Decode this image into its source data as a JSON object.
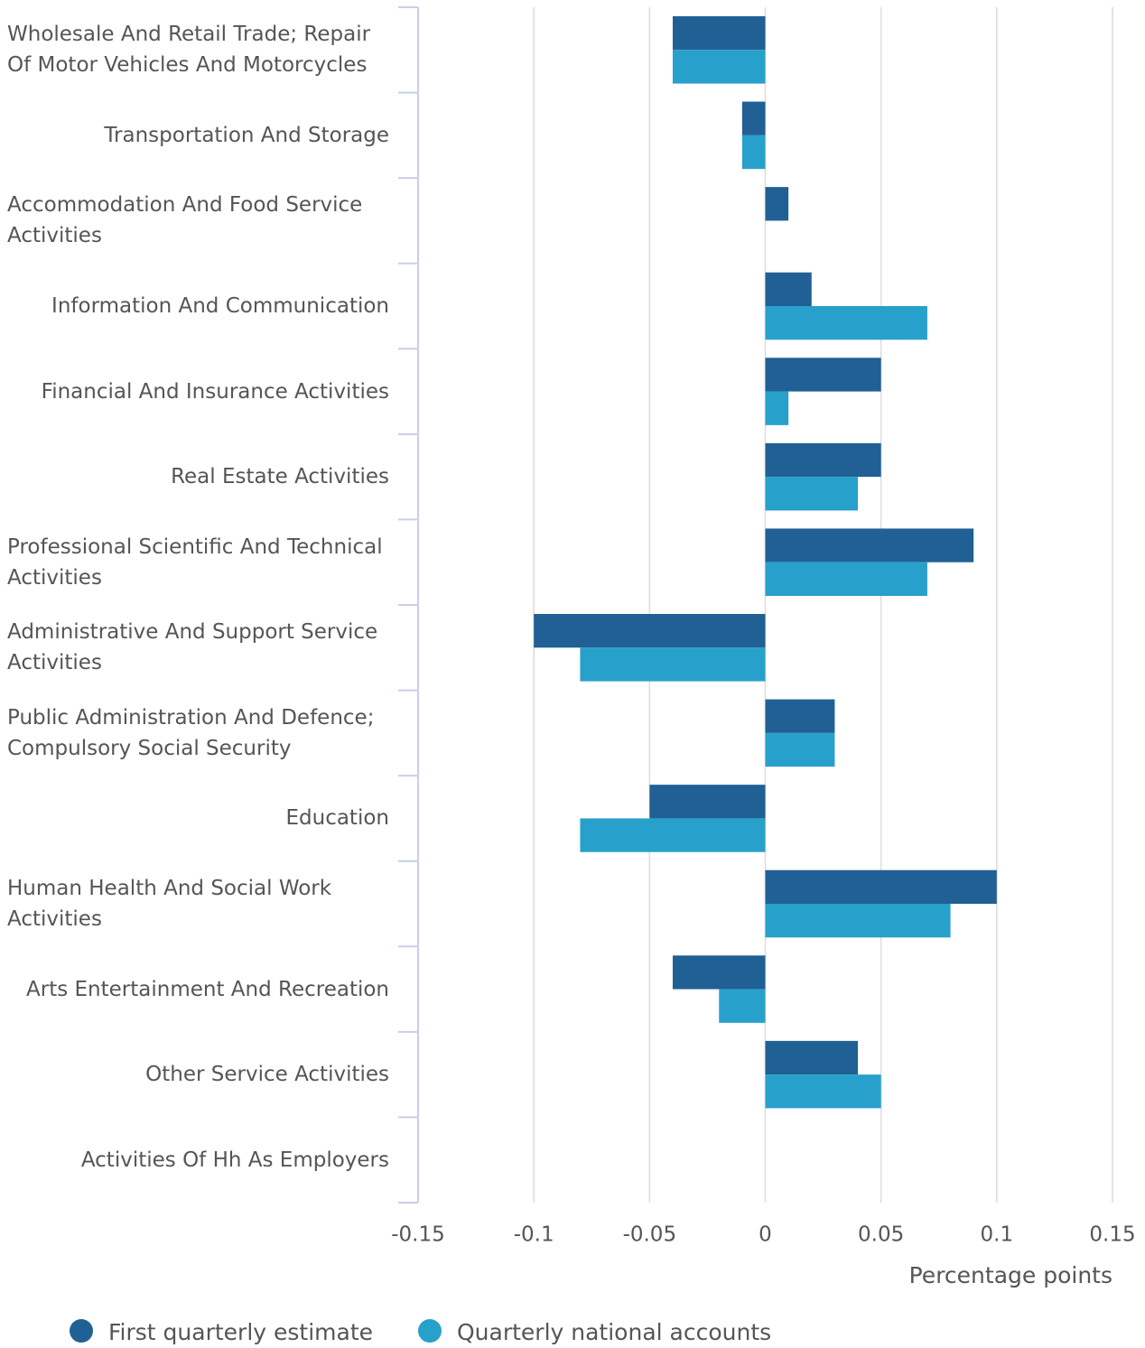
{
  "chart_data": {
    "type": "hbar",
    "categories": [
      "Wholesale And Retail Trade; Repair Of Motor Vehicles And Motorcycles",
      "Transportation And Storage",
      "Accommodation And Food Service Activities",
      "Information And Communication",
      "Financial And Insurance Activities",
      "Real Estate Activities",
      "Professional Scientific And Technical Activities",
      "Administrative And Support Service Activities",
      "Public Administration And Defence; Compulsory Social Security",
      "Education",
      "Human Health And Social Work Activities",
      "Arts Entertainment And Recreation",
      "Other Service Activities",
      "Activities Of Hh As Employers"
    ],
    "series": [
      {
        "name": "First quarterly estimate",
        "color": "#206095",
        "values": [
          -0.04,
          -0.01,
          0.01,
          0.02,
          0.05,
          0.05,
          0.09,
          -0.1,
          0.03,
          -0.05,
          0.1,
          -0.04,
          0.04,
          0
        ]
      },
      {
        "name": "Quarterly national accounts",
        "color": "#27a0cc",
        "values": [
          -0.04,
          -0.01,
          0,
          0.07,
          0.01,
          0.04,
          0.07,
          -0.08,
          0.03,
          -0.08,
          0.08,
          -0.02,
          0.05,
          0
        ]
      }
    ],
    "xlabel": "Percentage points",
    "xlim": [
      -0.15,
      0.15
    ],
    "xticks": [
      -0.15,
      -0.1,
      -0.05,
      0,
      0.05,
      0.1,
      0.15
    ],
    "grid": true
  }
}
